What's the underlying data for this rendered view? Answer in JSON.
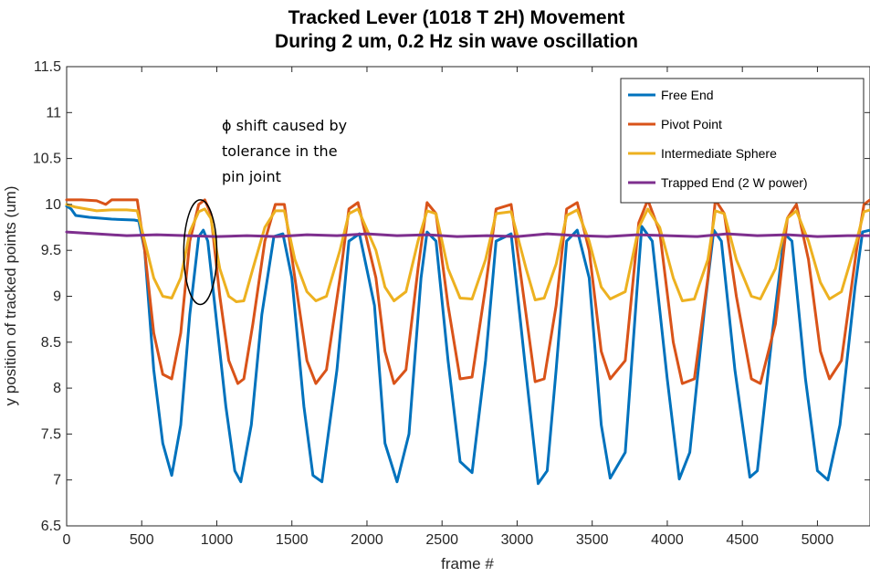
{
  "chart_data": {
    "type": "line",
    "title": [
      "Tracked Lever (1018 T 2H) Movement",
      "During 2 um, 0.2 Hz sin wave oscillation"
    ],
    "xlabel": "frame #",
    "ylabel": "y position of tracked points (um)",
    "xlim": [
      0,
      5350
    ],
    "ylim": [
      6.5,
      11.5
    ],
    "xticks": [
      0,
      500,
      1000,
      1500,
      2000,
      2500,
      3000,
      3500,
      4000,
      4500,
      5000
    ],
    "yticks": [
      6.5,
      7,
      7.5,
      8,
      8.5,
      9,
      9.5,
      10,
      10.5,
      11,
      11.5
    ],
    "grid": false,
    "legend_position": "top-right",
    "series": [
      {
        "name": "Free End",
        "color": "#0072BD",
        "x": [
          0,
          30,
          60,
          150,
          300,
          450,
          480,
          520,
          580,
          640,
          700,
          760,
          820,
          880,
          910,
          940,
          1000,
          1060,
          1120,
          1160,
          1230,
          1300,
          1380,
          1440,
          1500,
          1580,
          1640,
          1700,
          1800,
          1880,
          1950,
          2050,
          2120,
          2200,
          2280,
          2360,
          2400,
          2460,
          2540,
          2620,
          2700,
          2790,
          2860,
          2960,
          3050,
          3140,
          3200,
          3260,
          3330,
          3400,
          3480,
          3560,
          3620,
          3720,
          3800,
          3830,
          3900,
          4000,
          4080,
          4150,
          4250,
          4310,
          4360,
          4450,
          4550,
          4600,
          4700,
          4780,
          4830,
          4920,
          5000,
          5070,
          5150,
          5250,
          5300,
          5350
        ],
        "y": [
          9.98,
          9.95,
          9.88,
          9.86,
          9.84,
          9.83,
          9.82,
          9.5,
          8.2,
          7.4,
          7.05,
          7.6,
          8.8,
          9.65,
          9.72,
          9.6,
          8.7,
          7.8,
          7.1,
          6.98,
          7.6,
          8.8,
          9.65,
          9.68,
          9.2,
          7.8,
          7.05,
          6.98,
          8.2,
          9.6,
          9.68,
          8.9,
          7.4,
          6.98,
          7.5,
          9.2,
          9.7,
          9.6,
          8.3,
          7.2,
          7.08,
          8.3,
          9.6,
          9.68,
          8.3,
          6.96,
          7.1,
          8.2,
          9.6,
          9.72,
          9.2,
          7.6,
          7.02,
          7.3,
          9.1,
          9.76,
          9.6,
          8.1,
          7.01,
          7.3,
          8.9,
          9.72,
          9.6,
          8.2,
          7.03,
          7.1,
          8.6,
          9.68,
          9.6,
          8.1,
          7.1,
          7.0,
          7.6,
          9.1,
          9.7,
          9.72
        ]
      },
      {
        "name": "Pivot Point",
        "color": "#D95319",
        "x": [
          0,
          100,
          200,
          260,
          300,
          400,
          470,
          520,
          580,
          640,
          700,
          760,
          820,
          880,
          920,
          960,
          1020,
          1080,
          1140,
          1180,
          1240,
          1320,
          1390,
          1450,
          1520,
          1600,
          1660,
          1730,
          1820,
          1880,
          1940,
          2060,
          2120,
          2180,
          2260,
          2340,
          2400,
          2460,
          2540,
          2620,
          2700,
          2790,
          2860,
          2960,
          3060,
          3120,
          3180,
          3260,
          3330,
          3400,
          3480,
          3560,
          3620,
          3720,
          3810,
          3870,
          3950,
          4040,
          4100,
          4180,
          4270,
          4320,
          4380,
          4460,
          4560,
          4620,
          4720,
          4800,
          4860,
          4940,
          5020,
          5080,
          5160,
          5260,
          5310,
          5350
        ],
        "y": [
          10.05,
          10.05,
          10.04,
          10.0,
          10.05,
          10.05,
          10.05,
          9.5,
          8.6,
          8.15,
          8.1,
          8.6,
          9.6,
          10.0,
          10.05,
          9.9,
          9.0,
          8.3,
          8.05,
          8.1,
          8.7,
          9.6,
          10.0,
          10.0,
          9.2,
          8.3,
          8.05,
          8.2,
          9.2,
          9.95,
          10.02,
          9.2,
          8.4,
          8.05,
          8.2,
          9.3,
          10.02,
          9.9,
          8.9,
          8.1,
          8.12,
          9.1,
          9.95,
          10.0,
          8.8,
          8.07,
          8.1,
          8.9,
          9.95,
          10.02,
          9.5,
          8.4,
          8.1,
          8.3,
          9.8,
          10.05,
          9.7,
          8.5,
          8.05,
          8.1,
          9.2,
          10.05,
          9.9,
          9.0,
          8.1,
          8.05,
          8.7,
          9.85,
          10.0,
          9.4,
          8.4,
          8.1,
          8.3,
          9.5,
          10.0,
          10.05
        ]
      },
      {
        "name": "Intermediate Sphere",
        "color": "#EDB120",
        "x": [
          0,
          60,
          200,
          300,
          400,
          470,
          520,
          580,
          640,
          700,
          760,
          820,
          880,
          920,
          960,
          1020,
          1080,
          1130,
          1180,
          1240,
          1320,
          1390,
          1450,
          1520,
          1600,
          1660,
          1730,
          1820,
          1880,
          1940,
          2060,
          2120,
          2180,
          2260,
          2340,
          2400,
          2460,
          2540,
          2620,
          2700,
          2790,
          2860,
          2960,
          3060,
          3120,
          3180,
          3260,
          3330,
          3400,
          3480,
          3560,
          3620,
          3720,
          3810,
          3870,
          3950,
          4040,
          4100,
          4180,
          4270,
          4320,
          4380,
          4460,
          4560,
          4620,
          4720,
          4800,
          4860,
          4940,
          5020,
          5080,
          5160,
          5260,
          5310,
          5350
        ],
        "y": [
          10.0,
          9.97,
          9.93,
          9.94,
          9.94,
          9.93,
          9.6,
          9.2,
          9.0,
          8.98,
          9.2,
          9.7,
          9.92,
          9.95,
          9.85,
          9.3,
          9.0,
          8.94,
          8.95,
          9.3,
          9.75,
          9.93,
          9.93,
          9.4,
          9.05,
          8.95,
          9.0,
          9.5,
          9.9,
          9.95,
          9.5,
          9.1,
          8.95,
          9.05,
          9.6,
          9.93,
          9.9,
          9.3,
          8.98,
          8.97,
          9.4,
          9.9,
          9.92,
          9.3,
          8.96,
          8.98,
          9.35,
          9.88,
          9.94,
          9.6,
          9.1,
          8.97,
          9.05,
          9.75,
          9.95,
          9.75,
          9.2,
          8.95,
          8.97,
          9.4,
          9.93,
          9.9,
          9.4,
          9.0,
          8.97,
          9.3,
          9.85,
          9.93,
          9.6,
          9.15,
          8.97,
          9.05,
          9.6,
          9.92,
          9.94
        ]
      },
      {
        "name": "Trapped End (2 W power)",
        "color": "#7E2F8E",
        "x": [
          0,
          200,
          400,
          600,
          800,
          1000,
          1200,
          1400,
          1600,
          1800,
          2000,
          2200,
          2400,
          2600,
          2800,
          3000,
          3200,
          3400,
          3600,
          3800,
          4000,
          4200,
          4400,
          4600,
          4800,
          5000,
          5200,
          5350
        ],
        "y": [
          9.7,
          9.68,
          9.66,
          9.67,
          9.66,
          9.65,
          9.66,
          9.65,
          9.67,
          9.66,
          9.68,
          9.66,
          9.67,
          9.65,
          9.66,
          9.65,
          9.68,
          9.66,
          9.65,
          9.67,
          9.66,
          9.65,
          9.68,
          9.66,
          9.67,
          9.65,
          9.66,
          9.66
        ]
      }
    ],
    "annotation": {
      "text": [
        "ϕ shift caused by",
        "tolerance in the",
        "pin joint"
      ],
      "ellipse_center": [
        890,
        9.48
      ],
      "ellipse_radii": [
        110,
        0.57
      ]
    }
  }
}
